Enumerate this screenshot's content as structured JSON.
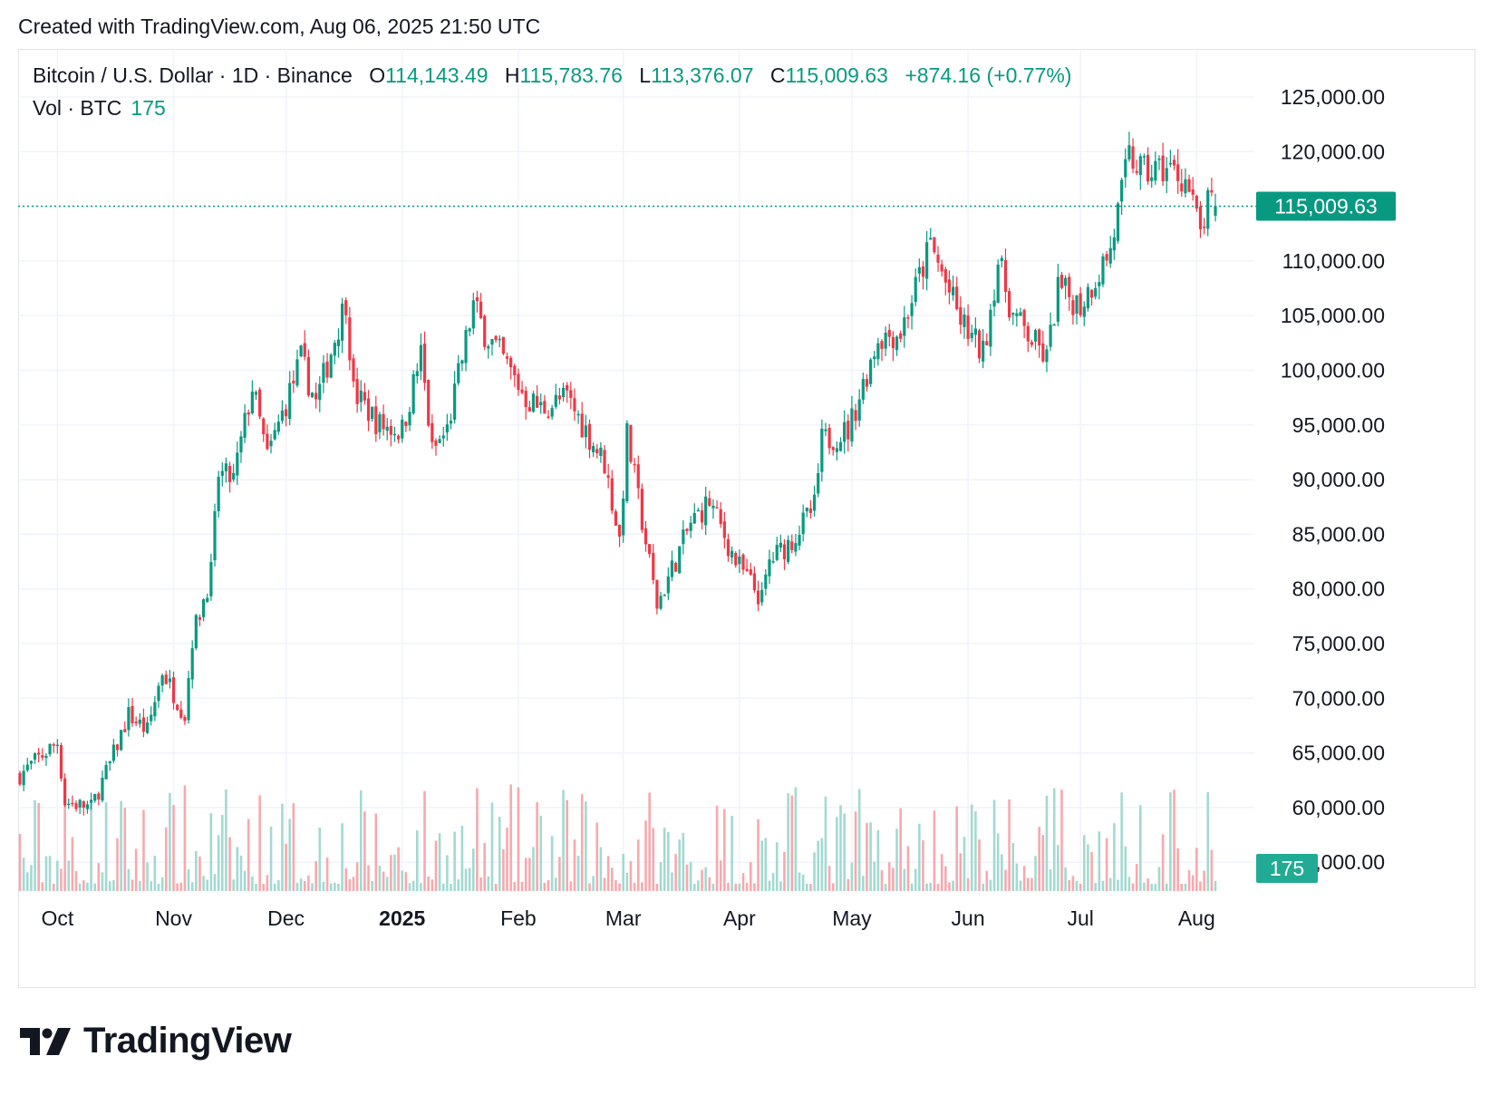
{
  "header": {
    "created_text": "Created with TradingView.com, Aug 06, 2025 21:50 UTC"
  },
  "legend": {
    "symbol": "Bitcoin / U.S. Dollar · 1D · Binance",
    "open_key": "O",
    "open": "114,143.49",
    "high_key": "H",
    "high": "115,783.76",
    "low_key": "L",
    "low": "113,376.07",
    "close_key": "C",
    "close": "115,009.63",
    "change": "+874.16 (+0.77%)",
    "vol_label": "Vol · BTC",
    "vol_value": "175"
  },
  "badges": {
    "price": "115,009.63",
    "volume": "175"
  },
  "footer": {
    "logo_text": "TradingView"
  },
  "colors": {
    "up": "#089981",
    "down": "#f23645",
    "vol_up": "#a3d9d1",
    "vol_down": "#f7a9ae",
    "grid": "#f0f3fa",
    "price_line": "#089981"
  },
  "chart_data": {
    "type": "candlestick",
    "title": "Bitcoin / U.S. Dollar · 1D · Binance",
    "ylim": [
      52500,
      127500
    ],
    "y_ticks": [
      "125,000.00",
      "120,000.00",
      "115,000.00",
      "110,000.00",
      "105,000.00",
      "100,000.00",
      "95,000.00",
      "90,000.00",
      "85,000.00",
      "80,000.00",
      "75,000.00",
      "70,000.00",
      "65,000.00",
      "60,000.00",
      "55,000.00"
    ],
    "y_tick_values": [
      125000,
      120000,
      115000,
      110000,
      105000,
      100000,
      95000,
      90000,
      85000,
      80000,
      75000,
      70000,
      65000,
      60000,
      55000
    ],
    "x_tick_labels": [
      "Oct",
      "Nov",
      "Dec",
      "2025",
      "Feb",
      "Mar",
      "Apr",
      "May",
      "Jun",
      "Jul",
      "Aug"
    ],
    "x_tick_bold": [
      false,
      false,
      false,
      true,
      false,
      false,
      false,
      false,
      false,
      false,
      false
    ],
    "x_tick_dates": [
      "2024-10-01",
      "2024-11-01",
      "2024-12-01",
      "2025-01-01",
      "2025-02-01",
      "2025-03-01",
      "2025-04-01",
      "2025-05-01",
      "2025-06-01",
      "2025-07-01",
      "2025-08-01"
    ],
    "x_range": [
      "2024-09-21",
      "2025-08-06"
    ],
    "last_close": 115009.63,
    "grid": true,
    "close_path": [
      [
        "2024-09-21",
        63000
      ],
      [
        "2024-10-01",
        66000
      ],
      [
        "2024-10-03",
        60500
      ],
      [
        "2024-10-10",
        60000
      ],
      [
        "2024-10-15",
        64000
      ],
      [
        "2024-10-20",
        68500
      ],
      [
        "2024-10-25",
        67000
      ],
      [
        "2024-10-29",
        72500
      ],
      [
        "2024-11-04",
        68500
      ],
      [
        "2024-11-06",
        75500
      ],
      [
        "2024-11-11",
        81500
      ],
      [
        "2024-11-13",
        90500
      ],
      [
        "2024-11-17",
        90000
      ],
      [
        "2024-11-22",
        98500
      ],
      [
        "2024-11-26",
        92000
      ],
      [
        "2024-12-01",
        97000
      ],
      [
        "2024-12-05",
        101000
      ],
      [
        "2024-12-09",
        97000
      ],
      [
        "2024-12-17",
        106500
      ],
      [
        "2024-12-19",
        98000
      ],
      [
        "2024-12-26",
        95000
      ],
      [
        "2025-01-01",
        94500
      ],
      [
        "2025-01-06",
        101500
      ],
      [
        "2025-01-09",
        92500
      ],
      [
        "2025-01-13",
        94500
      ],
      [
        "2025-01-20",
        106000
      ],
      [
        "2025-01-23",
        103500
      ],
      [
        "2025-01-27",
        101500
      ],
      [
        "2025-02-03",
        97500
      ],
      [
        "2025-02-07",
        96500
      ],
      [
        "2025-02-14",
        97500
      ],
      [
        "2025-02-24",
        91500
      ],
      [
        "2025-02-28",
        84500
      ],
      [
        "2025-03-02",
        94000
      ],
      [
        "2025-03-10",
        78500
      ],
      [
        "2025-03-19",
        86000
      ],
      [
        "2025-03-24",
        88000
      ],
      [
        "2025-03-31",
        82500
      ],
      [
        "2025-04-07",
        79000
      ],
      [
        "2025-04-09",
        82500
      ],
      [
        "2025-04-15",
        84500
      ],
      [
        "2025-04-21",
        87500
      ],
      [
        "2025-04-23",
        93500
      ],
      [
        "2025-04-30",
        94500
      ],
      [
        "2025-05-08",
        103000
      ],
      [
        "2025-05-14",
        103500
      ],
      [
        "2025-05-22",
        111500
      ],
      [
        "2025-05-30",
        104500
      ],
      [
        "2025-06-05",
        101500
      ],
      [
        "2025-06-09",
        110000
      ],
      [
        "2025-06-13",
        105000
      ],
      [
        "2025-06-22",
        101000
      ],
      [
        "2025-06-25",
        107500
      ],
      [
        "2025-07-01",
        106000
      ],
      [
        "2025-07-09",
        111000
      ],
      [
        "2025-07-14",
        119500
      ],
      [
        "2025-07-18",
        118000
      ],
      [
        "2025-07-24",
        118500
      ],
      [
        "2025-07-29",
        117500
      ],
      [
        "2025-08-02",
        112500
      ],
      [
        "2025-08-04",
        115000
      ],
      [
        "2025-08-06",
        115009.63
      ]
    ],
    "volume": {
      "label": "Vol · BTC",
      "last": 175
    }
  }
}
